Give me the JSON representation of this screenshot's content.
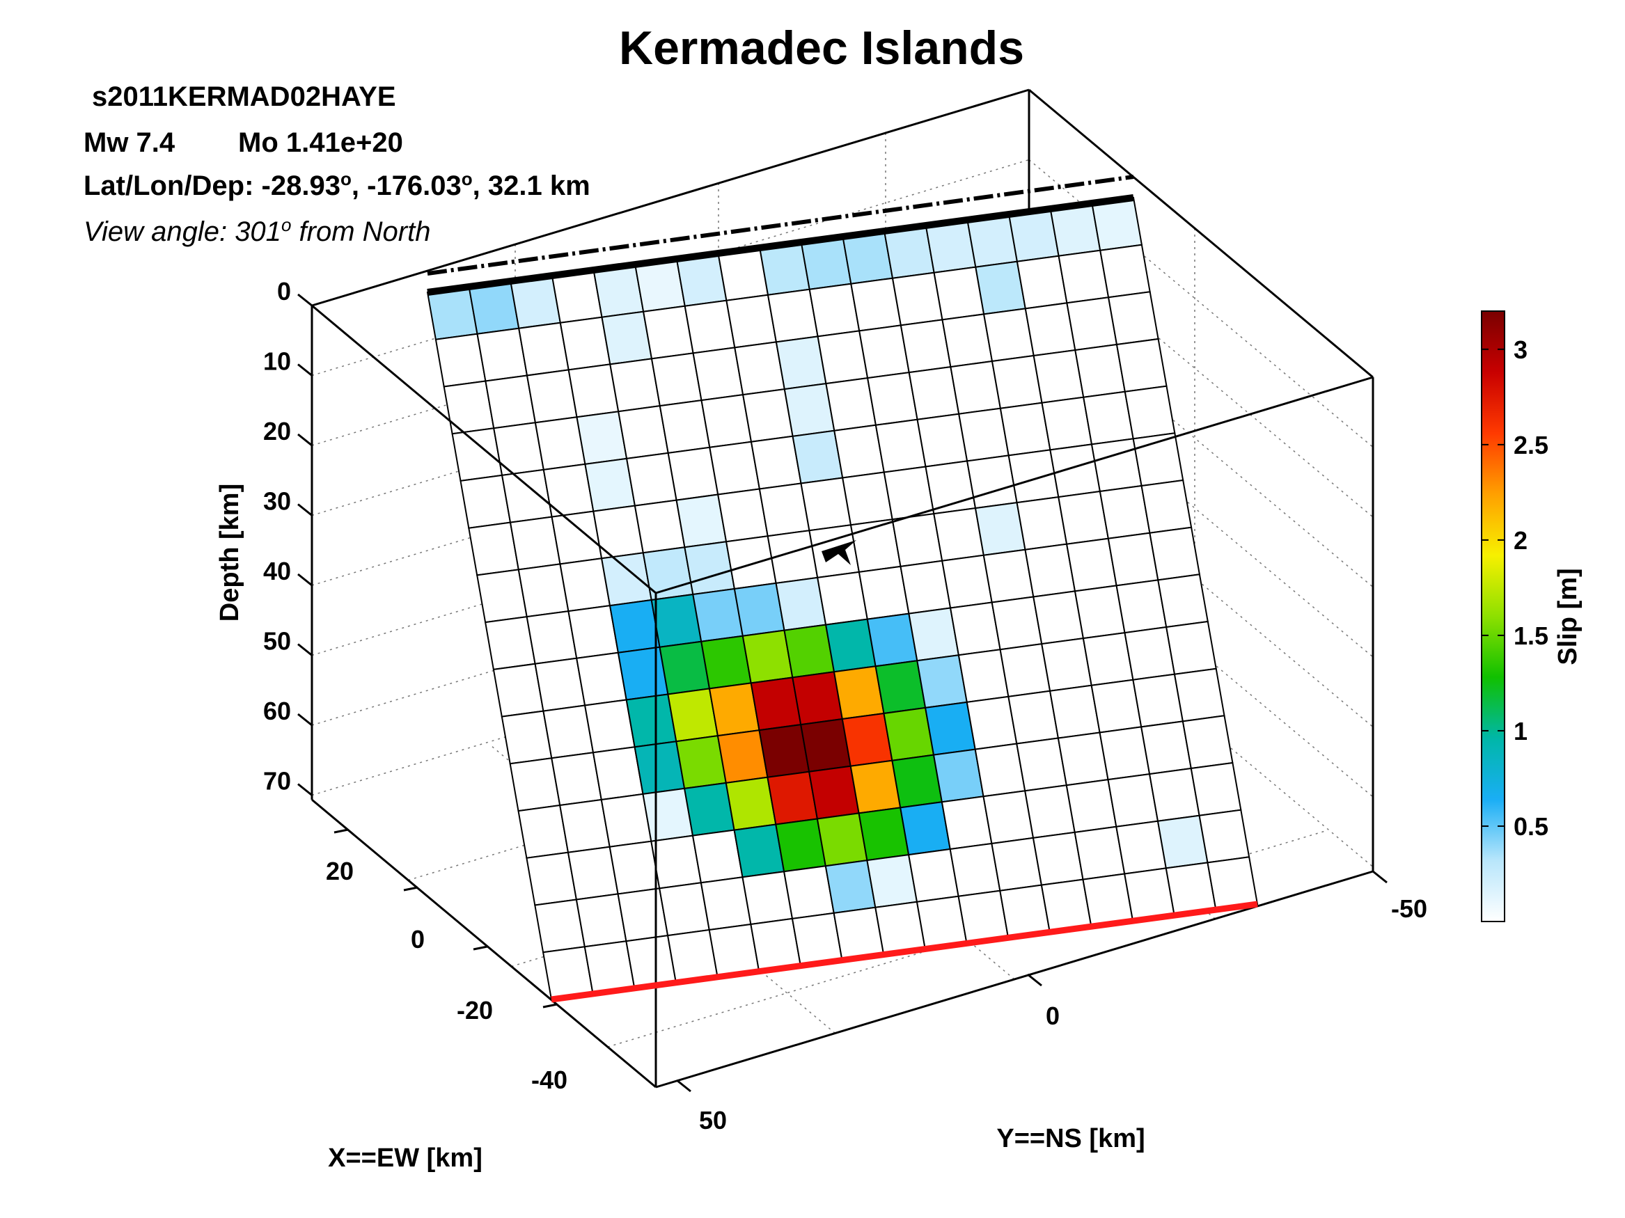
{
  "chart_data": {
    "type": "heatmap",
    "title": "Kermadec Islands",
    "event_id": "s2011KERMAD02HAYE",
    "magnitude_text": "Mw 7.4",
    "moment_text": "Mo 1.41e+20",
    "location_text": "Lat/Lon/Dep: -28.93",
    "location_lon_text": ", -176.03",
    "location_dep_text": ", 32.1 km",
    "degree_symbol": "o",
    "view_prefix": "View angle: 301",
    "view_suffix": " from North",
    "xlabel": "X==EW [km]",
    "ylabel": "Y==NS [km]",
    "zlabel": "Depth [km]",
    "depth_ticks": [
      "0",
      "10",
      "20",
      "30",
      "40",
      "50",
      "60",
      "70"
    ],
    "ew_ticks": [
      "20",
      "0",
      "-20",
      "-40"
    ],
    "ns_ticks": [
      "50",
      "0",
      "-50"
    ],
    "colorbar": {
      "label": "Slip [m]",
      "ticks": [
        "0.5",
        "1",
        "1.5",
        "2",
        "2.5",
        "3"
      ],
      "range": [
        0,
        3.2
      ]
    },
    "grid_rows": 15,
    "grid_cols": 17,
    "slip": [
      [
        0.35,
        0.4,
        0.2,
        0,
        0.15,
        0.1,
        0.2,
        0,
        0.3,
        0.35,
        0.35,
        0.25,
        0.2,
        0.2,
        0.2,
        0.15,
        0.12
      ],
      [
        0,
        0,
        0,
        0,
        0.15,
        0,
        0,
        0,
        0,
        0,
        0,
        0,
        0,
        0.3,
        0,
        0,
        0
      ],
      [
        0,
        0,
        0,
        0,
        0,
        0,
        0,
        0,
        0.15,
        0,
        0,
        0,
        0,
        0,
        0,
        0,
        0
      ],
      [
        0,
        0,
        0,
        0.1,
        0,
        0,
        0,
        0,
        0.15,
        0,
        0,
        0,
        0,
        0,
        0,
        0,
        0
      ],
      [
        0,
        0,
        0,
        0.12,
        0,
        0,
        0,
        0,
        0.25,
        0,
        0,
        0,
        0,
        0,
        0,
        0,
        0
      ],
      [
        0,
        0,
        0,
        0,
        0,
        0.12,
        0,
        0,
        0,
        0,
        0,
        0,
        0,
        0,
        0,
        0,
        0
      ],
      [
        0,
        0,
        0,
        0.2,
        0.28,
        0.25,
        0,
        0,
        0,
        0,
        0,
        0,
        0.15,
        0,
        0,
        0,
        0
      ],
      [
        0,
        0,
        0,
        0.65,
        0.85,
        0.45,
        0.45,
        0.2,
        0,
        0,
        0,
        0,
        0,
        0,
        0,
        0,
        0
      ],
      [
        0,
        0,
        0,
        0.65,
        1.15,
        1.35,
        1.6,
        1.45,
        0.95,
        0.55,
        0.15,
        0,
        0,
        0,
        0,
        0,
        0
      ],
      [
        0,
        0,
        0,
        0.95,
        1.75,
        2.2,
        2.9,
        2.9,
        2.2,
        1.2,
        0.4,
        0,
        0,
        0,
        0,
        0,
        0
      ],
      [
        0,
        0,
        0,
        0.9,
        1.55,
        2.3,
        3.2,
        3.2,
        2.6,
        1.5,
        0.65,
        0,
        0,
        0,
        0,
        0,
        0
      ],
      [
        0,
        0,
        0,
        0.12,
        0.95,
        1.7,
        2.75,
        2.9,
        2.2,
        1.25,
        0.45,
        0,
        0,
        0,
        0,
        0,
        0
      ],
      [
        0,
        0,
        0,
        0,
        0,
        0.95,
        1.3,
        1.55,
        1.3,
        0.65,
        0,
        0,
        0,
        0,
        0,
        0,
        0
      ],
      [
        0,
        0,
        0,
        0,
        0,
        0,
        0,
        0.4,
        0.12,
        0,
        0,
        0,
        0,
        0,
        0,
        0.15,
        0
      ],
      [
        0,
        0,
        0,
        0,
        0,
        0,
        0,
        0,
        0,
        0,
        0,
        0,
        0,
        0,
        0,
        0,
        0
      ]
    ]
  }
}
